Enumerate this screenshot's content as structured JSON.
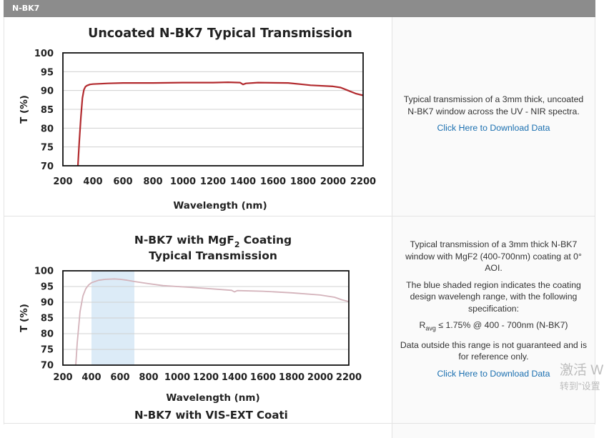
{
  "section": {
    "title": "N-BK7"
  },
  "rows": [
    {
      "description": "Typical transmission of a 3mm thick, uncoated N-BK7 window across the UV - NIR spectra.",
      "download_label": "Click Here to Download Data"
    },
    {
      "description": "Typical transmission of a 3mm thick N-BK7 window with MgF2 (400-700nm) coating at 0° AOI.",
      "note": "The blue shaded region indicates the coating design wavelengh range, with the following specification:",
      "spec_prefix": "R",
      "spec_sub": "avg",
      "spec_rest": " ≤ 1.75% @ 400 - 700nm (N-BK7)",
      "disclaimer": "Data outside this range is not guaranteed and is for reference only.",
      "download_label": "Click Here to Download Data"
    },
    {
      "chart_title_partial": "N-BK7 with VIS-EXT Coati"
    }
  ],
  "watermark": {
    "line1": "激活 W",
    "line2": "转到\"设置"
  },
  "chart_data": [
    {
      "type": "line",
      "title": "Uncoated N-BK7 Typical Transmission",
      "xlabel": "Wavelength (nm)",
      "ylabel": "T (%)",
      "xlim": [
        200,
        2200
      ],
      "ylim": [
        70,
        100
      ],
      "xticks": [
        200,
        400,
        600,
        800,
        1000,
        1200,
        1400,
        1600,
        1800,
        2000,
        2200
      ],
      "yticks": [
        70,
        75,
        80,
        85,
        90,
        95,
        100
      ],
      "grid": "horizontal",
      "series": [
        {
          "color": "#b22a2e",
          "x": [
            300,
            310,
            320,
            330,
            340,
            350,
            360,
            380,
            400,
            500,
            600,
            800,
            1000,
            1200,
            1300,
            1380,
            1400,
            1420,
            1500,
            1700,
            1800,
            1850,
            2000,
            2050,
            2100,
            2150,
            2200
          ],
          "y": [
            70,
            77,
            83,
            88,
            90.2,
            91.0,
            91.3,
            91.6,
            91.7,
            91.9,
            92.0,
            92.0,
            92.1,
            92.1,
            92.2,
            92.1,
            91.6,
            91.9,
            92.1,
            92.0,
            91.6,
            91.4,
            91.1,
            90.8,
            90.0,
            89.2,
            88.7
          ]
        }
      ]
    },
    {
      "type": "line",
      "title": "N-BK7 with MgF",
      "title_sub": "2",
      "title_rest": " Coating",
      "title_line2": "Typical Transmission",
      "xlabel": "Wavelength (nm)",
      "ylabel": "T (%)",
      "xlim": [
        200,
        2200
      ],
      "ylim": [
        70,
        100
      ],
      "xticks": [
        200,
        400,
        600,
        800,
        1000,
        1200,
        1400,
        1600,
        1800,
        2000,
        2200
      ],
      "yticks": [
        70,
        75,
        80,
        85,
        90,
        95,
        100
      ],
      "grid": "horizontal",
      "shaded_range": [
        400,
        700
      ],
      "shade_color": "#dcebf7",
      "series": [
        {
          "color": "#d4b3bb",
          "x": [
            290,
            300,
            320,
            340,
            360,
            380,
            400,
            450,
            500,
            560,
            600,
            650,
            700,
            800,
            900,
            1000,
            1200,
            1380,
            1400,
            1420,
            1600,
            1800,
            2000,
            2100,
            2150,
            2200
          ],
          "y": [
            70,
            77,
            87,
            92,
            94.3,
            95.5,
            96.2,
            97.0,
            97.3,
            97.4,
            97.3,
            97.0,
            96.6,
            95.9,
            95.3,
            95.0,
            94.4,
            93.8,
            93.3,
            93.7,
            93.5,
            93.0,
            92.3,
            91.6,
            90.8,
            90.2
          ]
        }
      ]
    }
  ]
}
